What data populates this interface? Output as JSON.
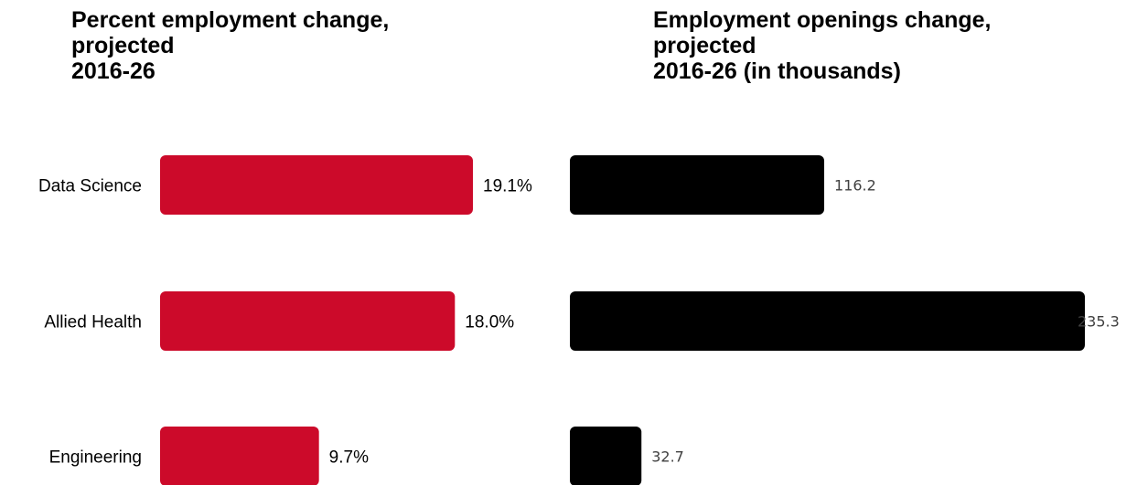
{
  "chart_data": [
    {
      "type": "bar",
      "orientation": "horizontal",
      "title_lines": [
        "Percent employment change,",
        "projected",
        "2016-26"
      ],
      "categories": [
        "Data Science",
        "Allied Health",
        "Engineering"
      ],
      "values": [
        19.1,
        18.0,
        9.7
      ],
      "data_labels": [
        "19.1%",
        "18.0%",
        "9.7%"
      ],
      "color": "#cc0a2a",
      "xlim": [
        0,
        19.1
      ]
    },
    {
      "type": "bar",
      "orientation": "horizontal",
      "title_lines": [
        "Employment openings change,",
        "projected",
        "2016-26 (in thousands)"
      ],
      "categories": [
        "Data Science",
        "Allied Health",
        "Engineering"
      ],
      "values": [
        116.2,
        235.3,
        32.7
      ],
      "data_labels": [
        "116.2",
        "235.3",
        "32.7"
      ],
      "color": "#000000",
      "xlim": [
        0,
        235.3
      ]
    }
  ]
}
